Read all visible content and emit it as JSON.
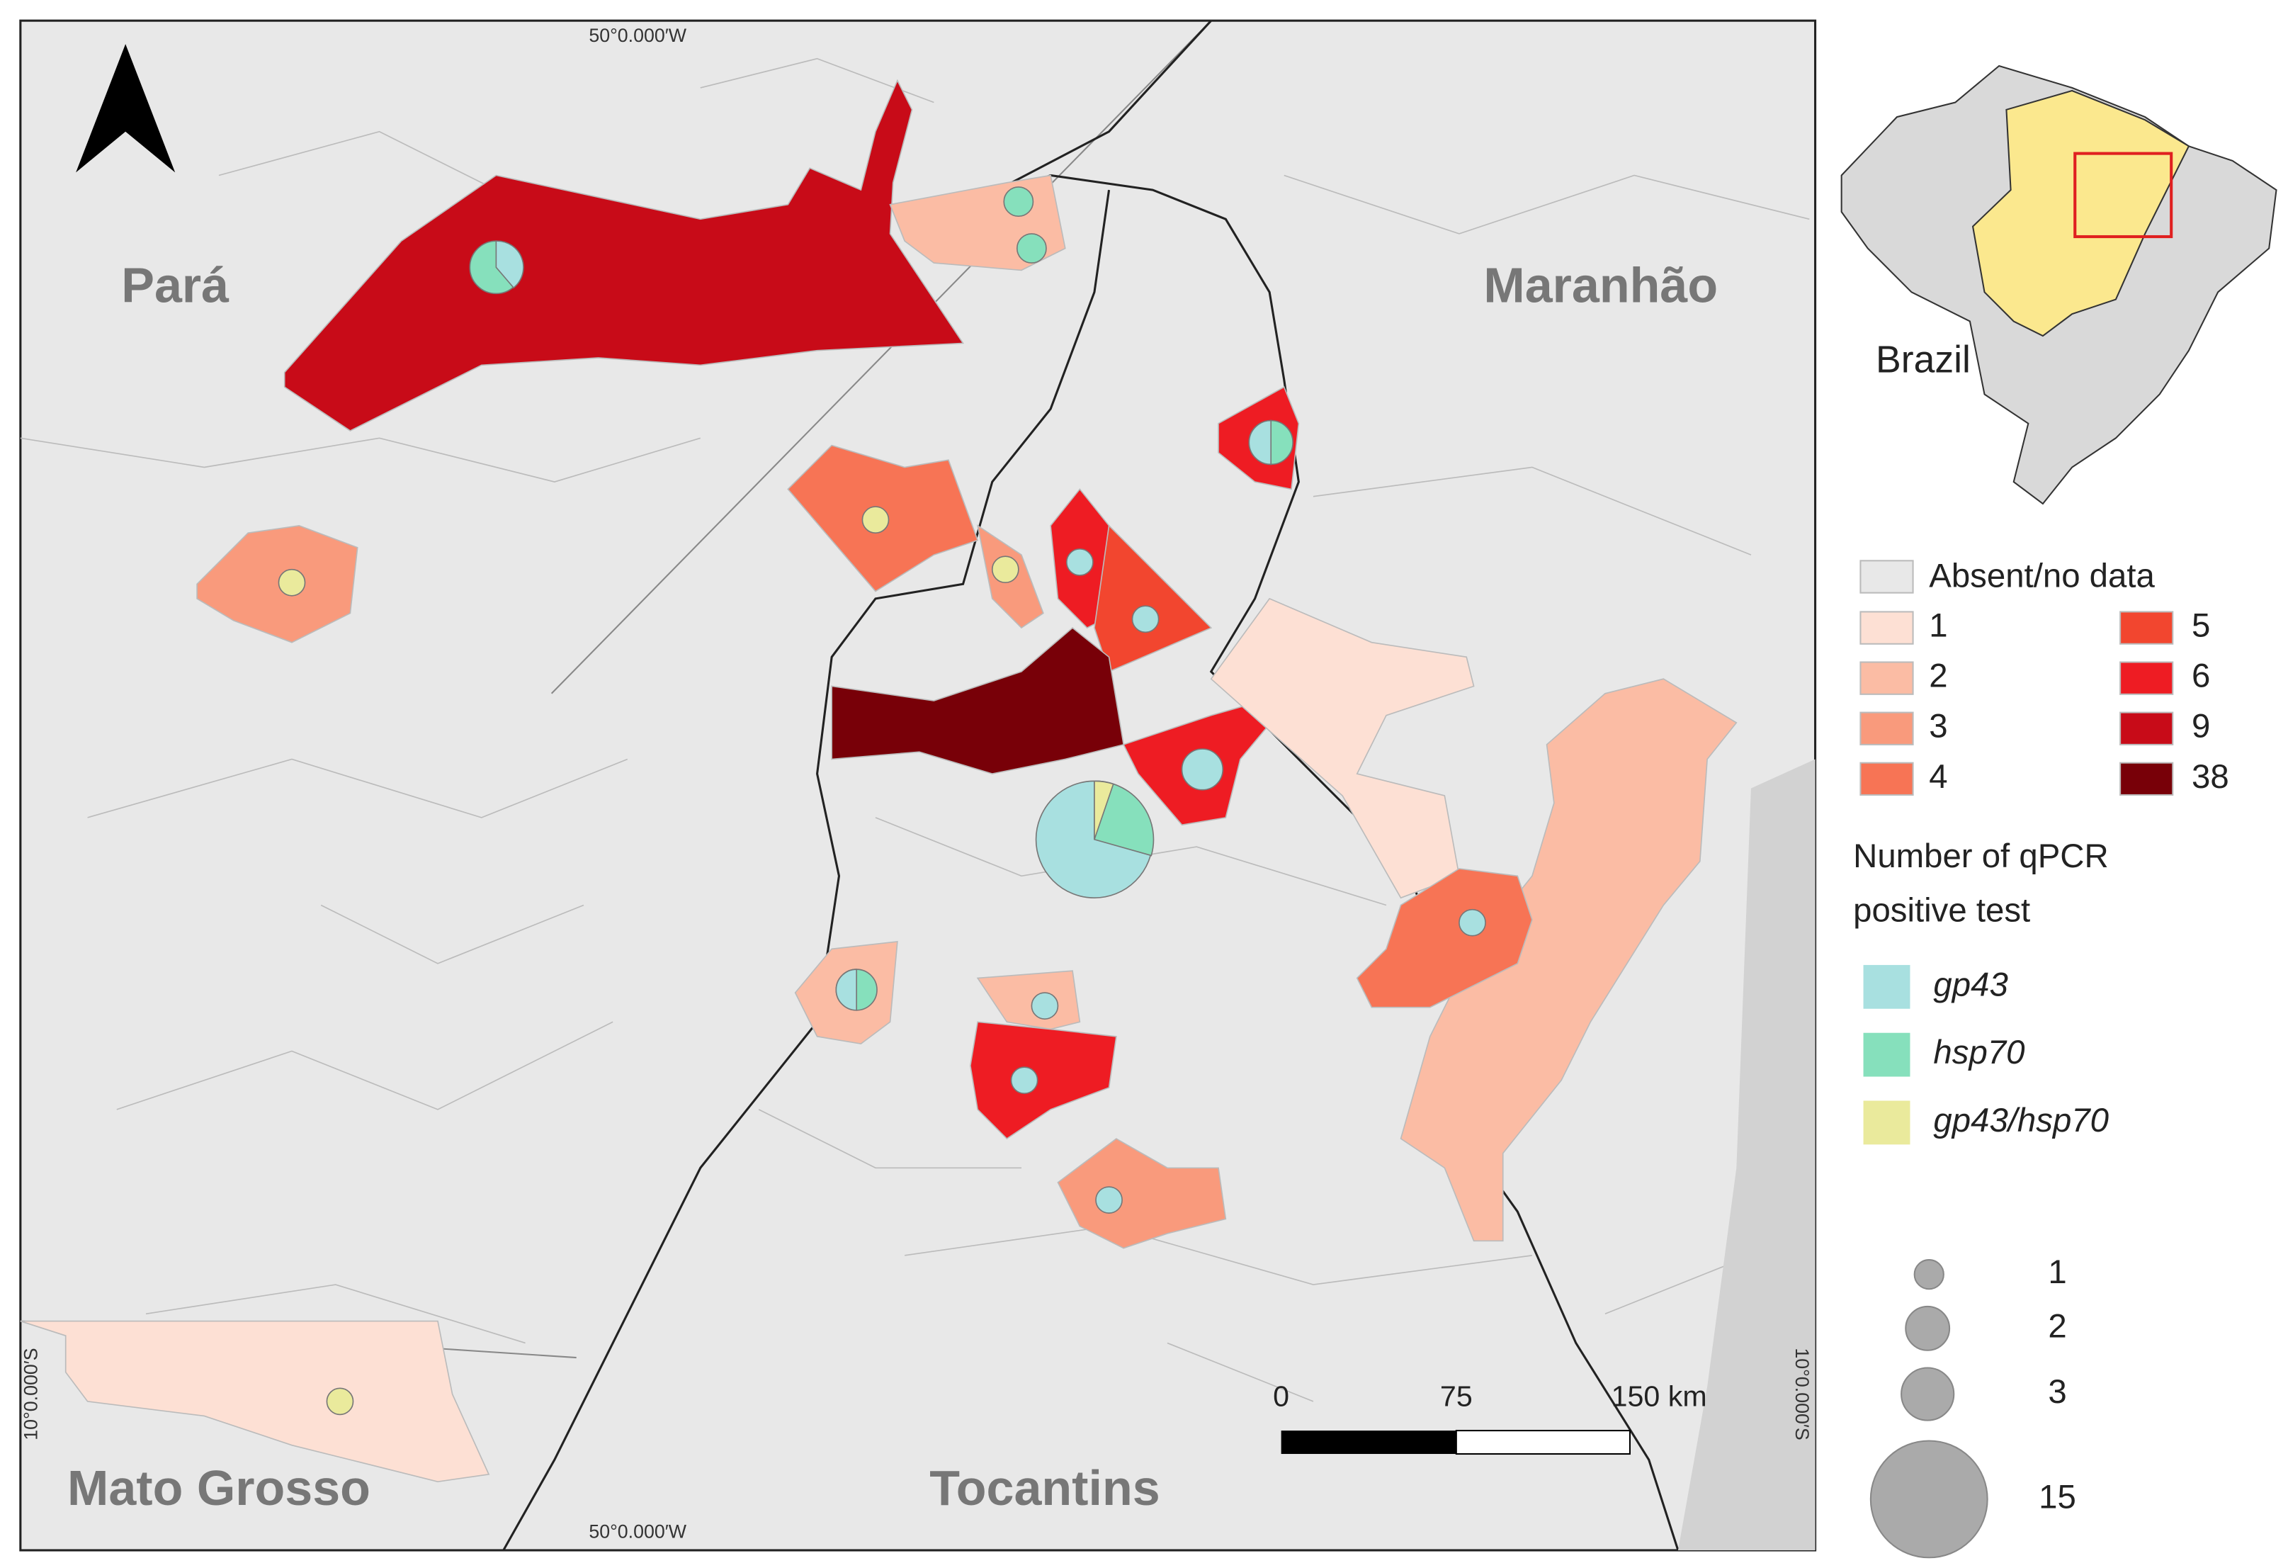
{
  "map": {
    "regions": [
      "Pará",
      "Maranhão",
      "Mato Grosso",
      "Tocantins"
    ],
    "coords": {
      "top": "50°0.000′W",
      "bottom": "50°0.000′W",
      "left": "10°0.000′S",
      "right": "10°0.000′S"
    }
  },
  "inset": {
    "label": "Brazil"
  },
  "scale_bar": {
    "ticks": [
      "0",
      "75",
      "150 km"
    ]
  },
  "legend": {
    "absent": "Absent/no data",
    "classes": [
      {
        "label": 1,
        "color": "#fde0d4"
      },
      {
        "label": 2,
        "color": "#fbbca4"
      },
      {
        "label": 3,
        "color": "#f99a7c"
      },
      {
        "label": 4,
        "color": "#f77455"
      },
      {
        "label": 5,
        "color": "#f2462f"
      },
      {
        "label": 6,
        "color": "#ee1c23"
      },
      {
        "label": 9,
        "color": "#c80b18"
      },
      {
        "label": 38,
        "color": "#780008"
      }
    ],
    "title": [
      "Number of qPCR",
      "positive test"
    ],
    "markers": [
      {
        "label": "gp43",
        "color": "#a8e0e0"
      },
      {
        "label": "hsp70",
        "color": "#86e0bc"
      },
      {
        "label": "gp43/hsp70",
        "color": "#eaea9c"
      }
    ],
    "sizes": [
      1,
      2,
      3,
      15
    ]
  }
}
